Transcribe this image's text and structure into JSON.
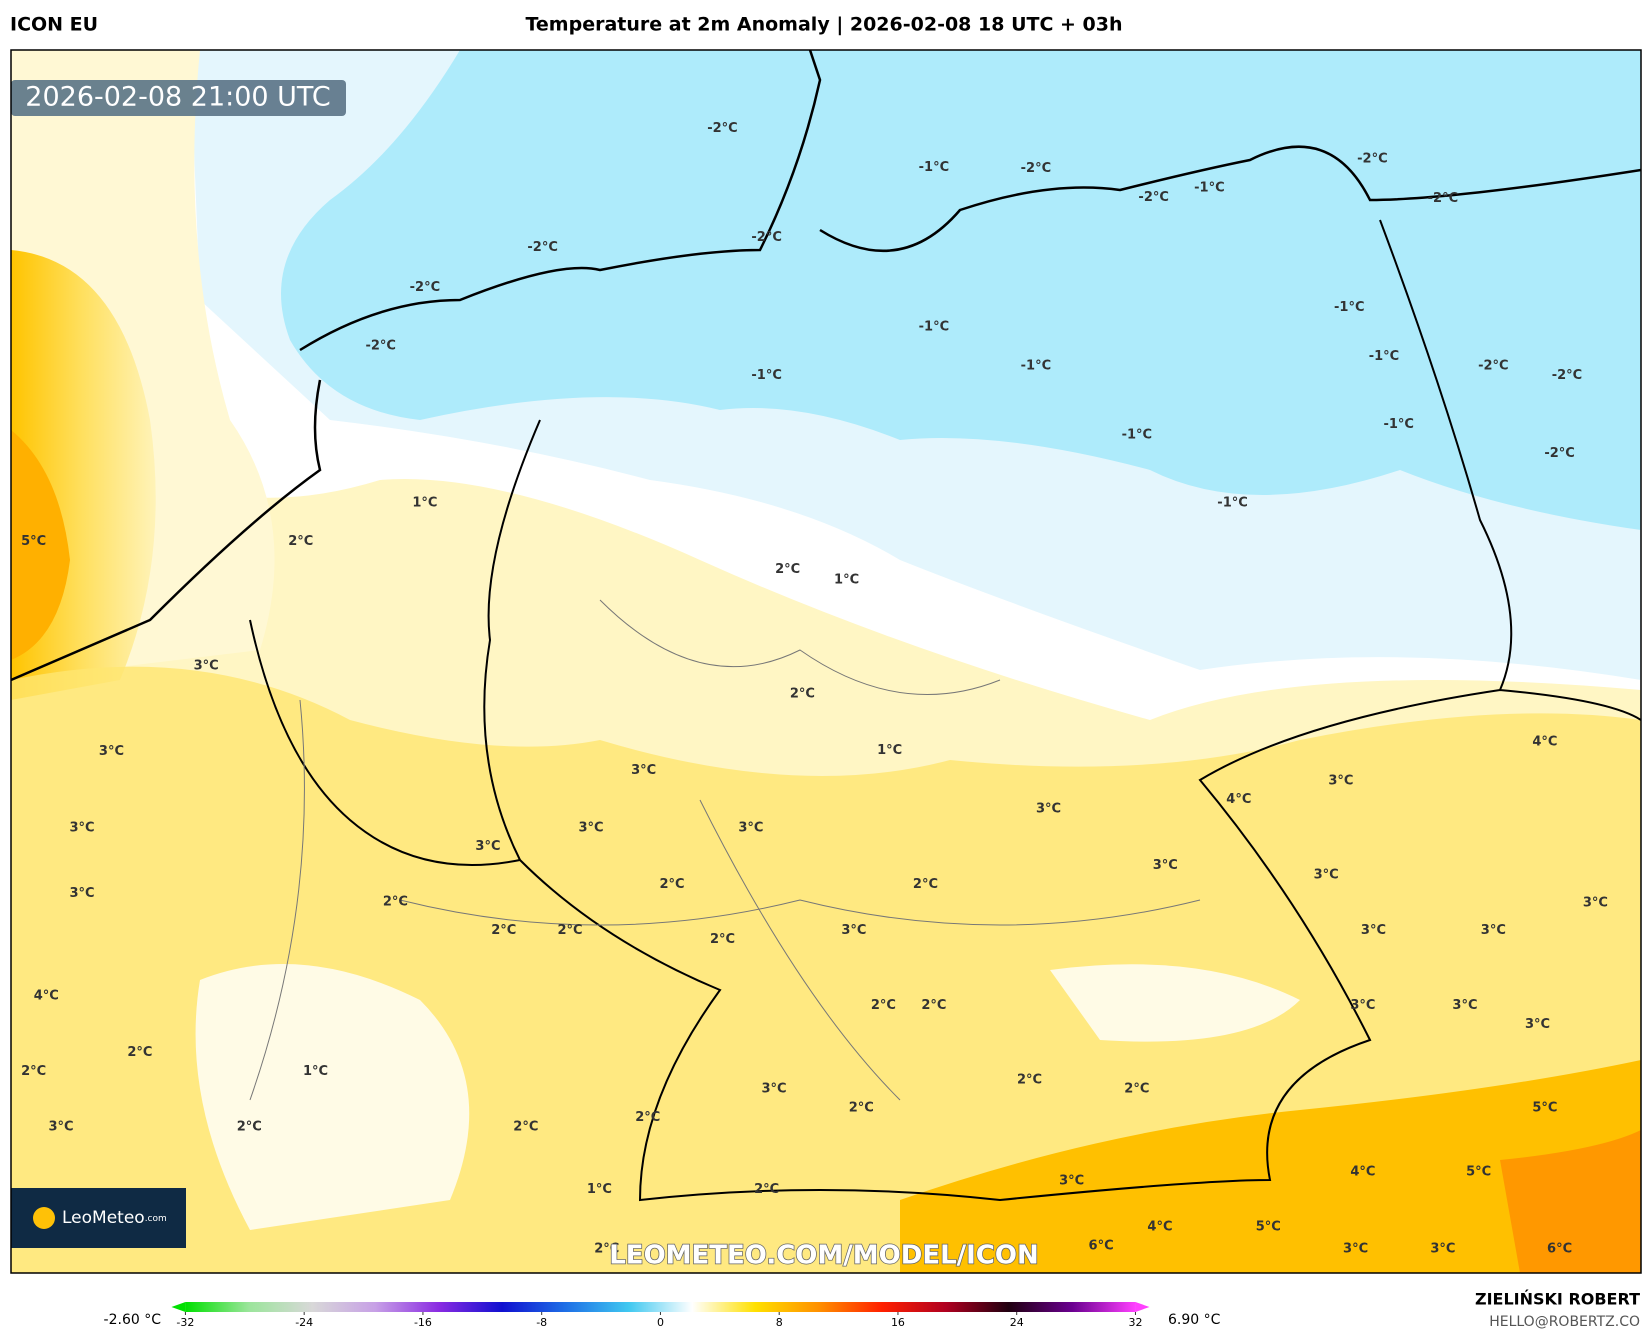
{
  "header": {
    "model": "ICON EU",
    "title": "Temperature at 2m Anomaly | 2026-02-08 18 UTC + 03h"
  },
  "map": {
    "timestamp": "2026-02-08 21:00 UTC",
    "watermark": "LEOMETEO.COM/MODEL/ICON",
    "logo": "LeoMeteo",
    "logo_domain": ".com",
    "labels": [
      "-2°C",
      "-1°C",
      "-2°C",
      "-2°C",
      "-1°C",
      "-2°C",
      "-2°C",
      "-2°C",
      "-2°C",
      "-2°C",
      "-2°C",
      "-1°C",
      "-1°C",
      "-1°C",
      "-1°C",
      "-2°C",
      "-2°C",
      "-1°C",
      "-1°C",
      "-1°C",
      "-2°C",
      "-1°C",
      "5°C",
      "2°C",
      "1°C",
      "2°C",
      "1°C",
      "3°C",
      "2°C",
      "1°C",
      "4°C",
      "3°C",
      "3°C",
      "3°C",
      "4°C",
      "3°C",
      "3°C",
      "3°C",
      "3°C",
      "3°C",
      "3°C",
      "3°C",
      "3°C",
      "2°C",
      "2°C",
      "2°C",
      "3°C",
      "2°C",
      "2°C",
      "3°C",
      "2°C",
      "3°C",
      "3°C",
      "4°C",
      "2°C",
      "2°C",
      "3°C",
      "3°C",
      "3°C",
      "2°C",
      "2°C",
      "1°C",
      "2°C",
      "2°C",
      "3°C",
      "2°C",
      "5°C",
      "3°C",
      "2°C",
      "2°C",
      "2°C",
      "4°C",
      "5°C",
      "3°C",
      "1°C",
      "2°C",
      "4°C",
      "5°C",
      "6°C",
      "3°C",
      "3°C",
      "6°C",
      "2°C"
    ]
  },
  "colorbar": {
    "min_label": "-2.60 °C",
    "max_label": "6.90 °C",
    "ticks": [
      -32,
      -24,
      -16,
      -8,
      0,
      8,
      16,
      24,
      32
    ],
    "colors": [
      "#00e000",
      "#9be59b",
      "#d8d8d8",
      "#c7a0e6",
      "#8a2be2",
      "#1010d0",
      "#1e6fe6",
      "#40c8f0",
      "#ffffff",
      "#ffe000",
      "#ff9000",
      "#ff2000",
      "#b00020",
      "#200010",
      "#6a0090",
      "#ff40ff"
    ]
  },
  "footer": {
    "author": "ZIELIŃSKI ROBERT",
    "email": "HELLO@ROBERTZ.CO"
  }
}
